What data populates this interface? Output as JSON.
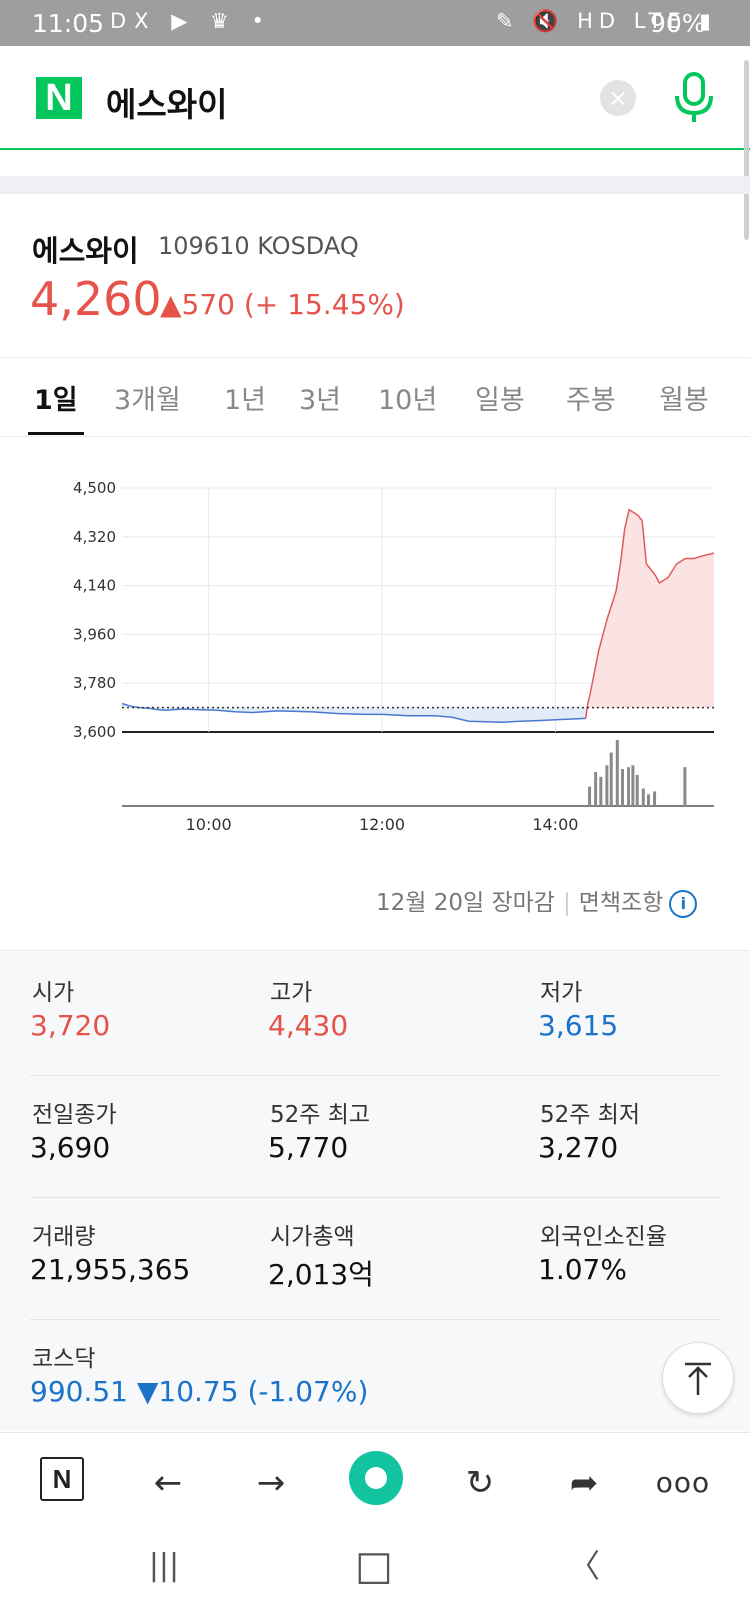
{
  "status_bar": {
    "time": "11:05",
    "left_icons_text": "DX ▶ ♛ •",
    "right_icons_text": "✎ 🔇 HD LTE ▮",
    "battery": "90%"
  },
  "search": {
    "logo": "N",
    "query": "에스와이",
    "clear_icon": "×"
  },
  "stock": {
    "name": "에스와이",
    "code_market": "109610 KOSDAQ",
    "price": "4,260",
    "change": "▲570 (+ 15.45%)"
  },
  "tabs": [
    "1일",
    "3개월",
    "1년",
    "3년",
    "10년",
    "일봉",
    "주봉",
    "월봉"
  ],
  "chart_data": {
    "type": "area",
    "y_ticks": [
      "4,500",
      "4,320",
      "4,140",
      "3,960",
      "3,780",
      "3,600"
    ],
    "ylim": [
      3600,
      4500
    ],
    "x_ticks": [
      "10:00",
      "12:00",
      "14:00"
    ],
    "x_range_hours": [
      9.0,
      15.83
    ],
    "previous_close": 3690,
    "series": [
      {
        "x": [
          9.0,
          9.05,
          9.1,
          9.2,
          9.3,
          9.4,
          9.5,
          9.7,
          9.9,
          10.1,
          10.3,
          10.5,
          10.8,
          11.0,
          11.2,
          11.5,
          11.8,
          12.0,
          12.3,
          12.6,
          12.8,
          13.0,
          13.2,
          13.4,
          13.6,
          13.8,
          14.0,
          14.2,
          14.35,
          14.37,
          14.4,
          14.5,
          14.6,
          14.7,
          14.75,
          14.8,
          14.85,
          14.9,
          14.95,
          15.0,
          15.05,
          15.1,
          15.15,
          15.2,
          15.3,
          15.4,
          15.5,
          15.6,
          15.7,
          15.83
        ],
        "values": [
          3705,
          3700,
          3695,
          3690,
          3688,
          3683,
          3680,
          3685,
          3682,
          3680,
          3675,
          3672,
          3678,
          3676,
          3674,
          3668,
          3665,
          3665,
          3660,
          3660,
          3655,
          3640,
          3638,
          3636,
          3640,
          3642,
          3645,
          3648,
          3650,
          3700,
          3740,
          3900,
          4020,
          4120,
          4220,
          4350,
          4420,
          4410,
          4400,
          4380,
          4220,
          4200,
          4180,
          4150,
          4170,
          4220,
          4240,
          4240,
          4250,
          4260
        ]
      }
    ],
    "volume": {
      "x": [
        14.4,
        14.47,
        14.53,
        14.6,
        14.65,
        14.72,
        14.78,
        14.85,
        14.9,
        14.95,
        15.02,
        15.08,
        15.15,
        15.5
      ],
      "values": [
        20,
        35,
        30,
        42,
        55,
        68,
        38,
        40,
        42,
        32,
        18,
        12,
        15,
        40
      ]
    },
    "colors": {
      "up_line": "#e05a5a",
      "up_fill": "#fbe3e3",
      "down_line": "#4a78cf",
      "down_fill": "#e2ecf8"
    }
  },
  "footnote": {
    "date": "12월 20일 장마감",
    "disclaimer": "면책조항",
    "info_icon": "i"
  },
  "stats": [
    {
      "label": "시가",
      "value": "3,720",
      "color": "red"
    },
    {
      "label": "고가",
      "value": "4,430",
      "color": "red"
    },
    {
      "label": "저가",
      "value": "3,615",
      "color": "blue"
    },
    {
      "label": "전일종가",
      "value": "3,690",
      "color": "black"
    },
    {
      "label": "52주 최고",
      "value": "5,770",
      "color": "black"
    },
    {
      "label": "52주 최저",
      "value": "3,270",
      "color": "black"
    },
    {
      "label": "거래량",
      "value": "21,955,365",
      "color": "black"
    },
    {
      "label": "시가총액",
      "value": "2,013억",
      "color": "black"
    },
    {
      "label": "외국인소진율",
      "value": "1.07%",
      "color": "black"
    }
  ],
  "kosdaq": {
    "label": "코스닥",
    "value": "990.51 ▼10.75 (-1.07%)"
  },
  "browser_bar": {
    "home_label": "N",
    "back": "←",
    "forward": "→",
    "refresh": "↻",
    "share": "➦",
    "more": "ooo"
  },
  "nav_bar": {
    "recents": "|||",
    "home": "□",
    "back": "〈"
  }
}
